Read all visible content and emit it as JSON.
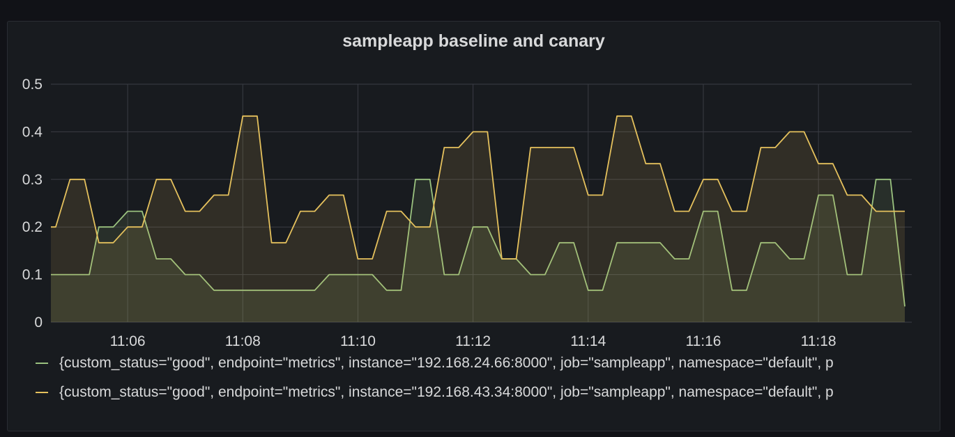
{
  "panel": {
    "title": "sampleapp baseline and canary"
  },
  "colors": {
    "background": "#111217",
    "panel": "#181b1f",
    "grid": "#3a3d44",
    "text": "#d8d9da"
  },
  "chart_data": {
    "type": "area",
    "title": "sampleapp baseline and canary",
    "x_unit": "time (HH:MM)",
    "x_ticks": [
      "11:06",
      "11:08",
      "11:10",
      "11:12",
      "11:14",
      "11:16",
      "11:18"
    ],
    "xlim": [
      "11:04:40",
      "11:19:30"
    ],
    "ylim": [
      0,
      0.5
    ],
    "y_ticks": [
      "0",
      "0.1",
      "0.2",
      "0.3",
      "0.4",
      "0.5"
    ],
    "grid": true,
    "legend_position": "bottom",
    "series": [
      {
        "name": "{custom_status=\"good\", endpoint=\"metrics\", instance=\"192.168.24.66:8000\", job=\"sampleapp\", namespace=\"default\", p",
        "color": "#9ac27f",
        "points": [
          [
            "11:04:40",
            0.1
          ],
          [
            "11:05:10",
            0.1
          ],
          [
            "11:05:20",
            0.1
          ],
          [
            "11:05:30",
            0.2
          ],
          [
            "11:05:45",
            0.2
          ],
          [
            "11:06:00",
            0.233
          ],
          [
            "11:06:15",
            0.233
          ],
          [
            "11:06:30",
            0.133
          ],
          [
            "11:06:45",
            0.133
          ],
          [
            "11:07:00",
            0.1
          ],
          [
            "11:07:15",
            0.1
          ],
          [
            "11:07:30",
            0.067
          ],
          [
            "11:09:15",
            0.067
          ],
          [
            "11:09:30",
            0.1
          ],
          [
            "11:10:15",
            0.1
          ],
          [
            "11:10:30",
            0.067
          ],
          [
            "11:10:45",
            0.067
          ],
          [
            "11:11:00",
            0.3
          ],
          [
            "11:11:15",
            0.3
          ],
          [
            "11:11:30",
            0.1
          ],
          [
            "11:11:45",
            0.1
          ],
          [
            "11:12:00",
            0.2
          ],
          [
            "11:12:15",
            0.2
          ],
          [
            "11:12:30",
            0.133
          ],
          [
            "11:12:45",
            0.133
          ],
          [
            "11:13:00",
            0.1
          ],
          [
            "11:13:15",
            0.1
          ],
          [
            "11:13:30",
            0.167
          ],
          [
            "11:13:45",
            0.167
          ],
          [
            "11:14:00",
            0.067
          ],
          [
            "11:14:15",
            0.067
          ],
          [
            "11:14:30",
            0.167
          ],
          [
            "11:15:15",
            0.167
          ],
          [
            "11:15:30",
            0.133
          ],
          [
            "11:15:45",
            0.133
          ],
          [
            "11:16:00",
            0.233
          ],
          [
            "11:16:15",
            0.233
          ],
          [
            "11:16:30",
            0.067
          ],
          [
            "11:16:45",
            0.067
          ],
          [
            "11:17:00",
            0.167
          ],
          [
            "11:17:15",
            0.167
          ],
          [
            "11:17:30",
            0.133
          ],
          [
            "11:17:45",
            0.133
          ],
          [
            "11:18:00",
            0.267
          ],
          [
            "11:18:15",
            0.267
          ],
          [
            "11:18:30",
            0.1
          ],
          [
            "11:18:45",
            0.1
          ],
          [
            "11:19:00",
            0.3
          ],
          [
            "11:19:15",
            0.3
          ],
          [
            "11:19:30",
            0.033
          ]
        ]
      },
      {
        "name": "{custom_status=\"good\", endpoint=\"metrics\", instance=\"192.168.43.34:8000\", job=\"sampleapp\", namespace=\"default\", p",
        "color": "#e5c15d",
        "points": [
          [
            "11:04:40",
            0.2
          ],
          [
            "11:04:45",
            0.2
          ],
          [
            "11:05:00",
            0.3
          ],
          [
            "11:05:15",
            0.3
          ],
          [
            "11:05:30",
            0.167
          ],
          [
            "11:05:45",
            0.167
          ],
          [
            "11:06:00",
            0.2
          ],
          [
            "11:06:15",
            0.2
          ],
          [
            "11:06:30",
            0.3
          ],
          [
            "11:06:45",
            0.3
          ],
          [
            "11:07:00",
            0.233
          ],
          [
            "11:07:15",
            0.233
          ],
          [
            "11:07:30",
            0.267
          ],
          [
            "11:07:45",
            0.267
          ],
          [
            "11:08:00",
            0.433
          ],
          [
            "11:08:15",
            0.433
          ],
          [
            "11:08:30",
            0.167
          ],
          [
            "11:08:45",
            0.167
          ],
          [
            "11:09:00",
            0.233
          ],
          [
            "11:09:15",
            0.233
          ],
          [
            "11:09:30",
            0.267
          ],
          [
            "11:09:45",
            0.267
          ],
          [
            "11:10:00",
            0.133
          ],
          [
            "11:10:15",
            0.133
          ],
          [
            "11:10:30",
            0.233
          ],
          [
            "11:10:45",
            0.233
          ],
          [
            "11:11:00",
            0.2
          ],
          [
            "11:11:15",
            0.2
          ],
          [
            "11:11:30",
            0.367
          ],
          [
            "11:11:45",
            0.367
          ],
          [
            "11:12:00",
            0.4
          ],
          [
            "11:12:15",
            0.4
          ],
          [
            "11:12:30",
            0.133
          ],
          [
            "11:12:45",
            0.133
          ],
          [
            "11:13:00",
            0.367
          ],
          [
            "11:13:45",
            0.367
          ],
          [
            "11:14:00",
            0.267
          ],
          [
            "11:14:15",
            0.267
          ],
          [
            "11:14:30",
            0.433
          ],
          [
            "11:14:45",
            0.433
          ],
          [
            "11:15:00",
            0.333
          ],
          [
            "11:15:15",
            0.333
          ],
          [
            "11:15:30",
            0.233
          ],
          [
            "11:15:45",
            0.233
          ],
          [
            "11:16:00",
            0.3
          ],
          [
            "11:16:15",
            0.3
          ],
          [
            "11:16:30",
            0.233
          ],
          [
            "11:16:45",
            0.233
          ],
          [
            "11:17:00",
            0.367
          ],
          [
            "11:17:15",
            0.367
          ],
          [
            "11:17:30",
            0.4
          ],
          [
            "11:17:45",
            0.4
          ],
          [
            "11:18:00",
            0.333
          ],
          [
            "11:18:15",
            0.333
          ],
          [
            "11:18:30",
            0.267
          ],
          [
            "11:18:45",
            0.267
          ],
          [
            "11:19:00",
            0.233
          ],
          [
            "11:19:30",
            0.233
          ]
        ]
      }
    ]
  }
}
